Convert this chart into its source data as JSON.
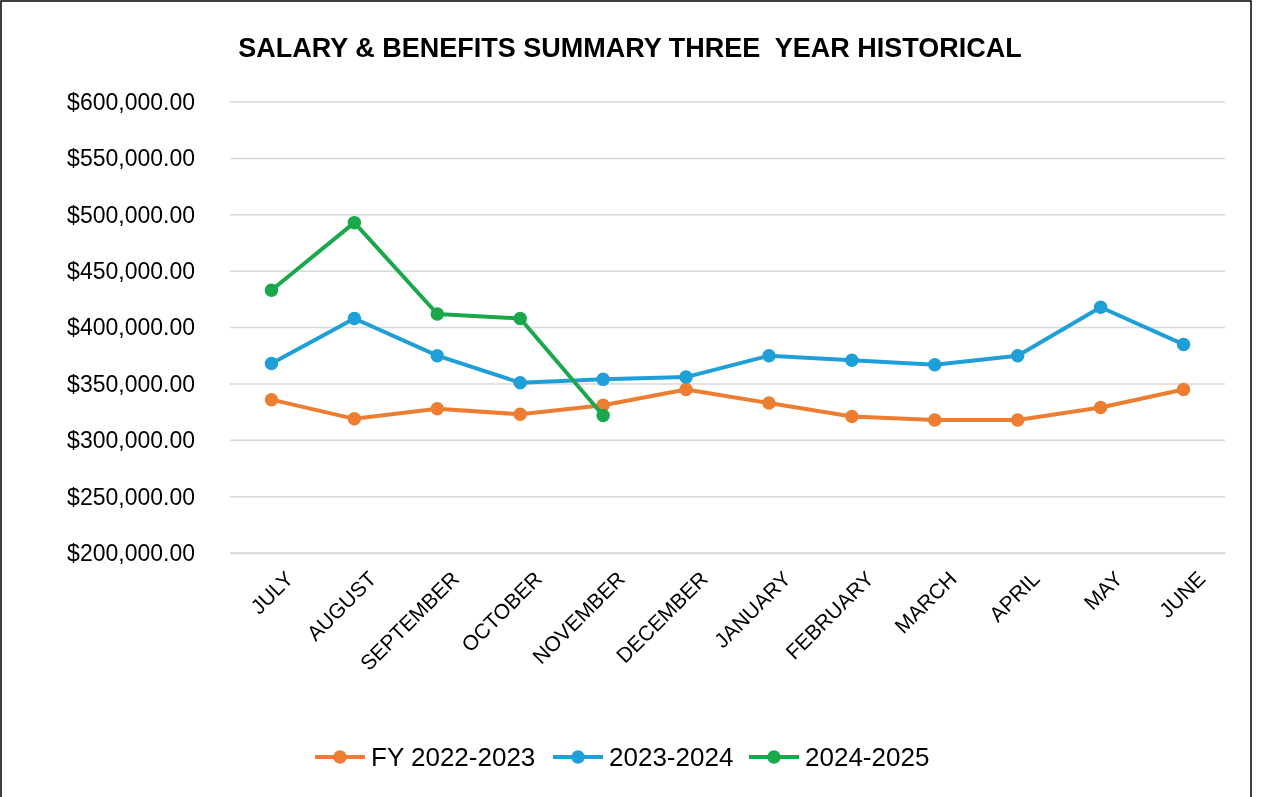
{
  "chart_data": {
    "type": "line",
    "title": "SALARY & BENEFITS SUMMARY THREE  YEAR HISTORICAL",
    "categories": [
      "JULY",
      "AUGUST",
      "SEPTEMBER",
      "OCTOBER",
      "NOVEMBER",
      "DECEMBER",
      "JANUARY",
      "FEBRUARY",
      "MARCH",
      "APRIL",
      "MAY",
      "JUNE"
    ],
    "series": [
      {
        "name": "FY 2022-2023",
        "color": "#ed7d31",
        "values": [
          336000,
          319000,
          328000,
          323000,
          331000,
          345000,
          333000,
          321000,
          318000,
          318000,
          329000,
          345000
        ]
      },
      {
        "name": "2023-2024",
        "color": "#1f9fd8",
        "values": [
          368000,
          408000,
          375000,
          351000,
          354000,
          356000,
          375000,
          371000,
          367000,
          375000,
          418000,
          385000
        ]
      },
      {
        "name": "2024-2025",
        "color": "#1aa84a",
        "values": [
          433000,
          493000,
          412000,
          408000,
          322000,
          null,
          null,
          null,
          null,
          null,
          null,
          null
        ]
      }
    ],
    "ylim": [
      200000,
      600000
    ],
    "yticks": [
      {
        "value": 200000,
        "label": "$200,000.00"
      },
      {
        "value": 250000,
        "label": "$250,000.00"
      },
      {
        "value": 300000,
        "label": "$300,000.00"
      },
      {
        "value": 350000,
        "label": "$350,000.00"
      },
      {
        "value": 400000,
        "label": "$400,000.00"
      },
      {
        "value": 450000,
        "label": "$450,000.00"
      },
      {
        "value": 500000,
        "label": "$500,000.00"
      },
      {
        "value": 550000,
        "label": "$550,000.00"
      },
      {
        "value": 600000,
        "label": "$600,000.00"
      }
    ],
    "grid": "y",
    "legend": "bottom",
    "marker": "circle",
    "line_style": "solid"
  }
}
